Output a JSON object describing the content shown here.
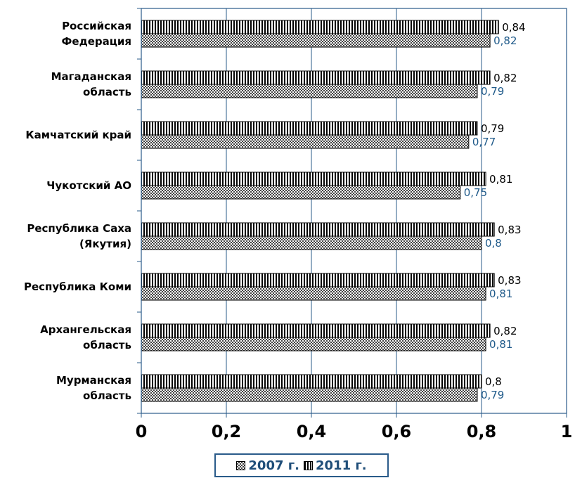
{
  "chart_data": {
    "type": "bar",
    "orientation": "horizontal",
    "categories": [
      [
        "Российская",
        "Федерация"
      ],
      [
        "Магаданская",
        "область"
      ],
      [
        "Камчатский край"
      ],
      [
        "Чукотский АО"
      ],
      [
        "Республика Саха",
        "(Якутия)"
      ],
      [
        "Республика Коми"
      ],
      [
        "Архангельская",
        "область"
      ],
      [
        "Мурманская",
        "область"
      ]
    ],
    "series": [
      {
        "name": "2011 г.",
        "values": [
          0.84,
          0.82,
          0.79,
          0.81,
          0.83,
          0.83,
          0.82,
          0.8
        ],
        "labels": [
          "0,84",
          "0,82",
          "0,79",
          "0,81",
          "0,83",
          "0,83",
          "0,82",
          "0,8"
        ]
      },
      {
        "name": "2007 г.",
        "values": [
          0.82,
          0.79,
          0.77,
          0.75,
          0.8,
          0.81,
          0.81,
          0.79
        ],
        "labels": [
          "0,82",
          "0,79",
          "0,77",
          "0,75",
          "0,8",
          "0,81",
          "0,81",
          "0,79"
        ]
      }
    ],
    "xlim": [
      0,
      1
    ],
    "x_ticks": [
      0,
      0.2,
      0.4,
      0.6,
      0.8,
      1
    ],
    "x_tick_labels": [
      "0",
      "0,2",
      "0,4",
      "0,6",
      "0,8",
      "1"
    ],
    "grid": "vertical",
    "legend_position": "bottom",
    "legend": [
      {
        "name": "2007 г.",
        "pattern": "checker"
      },
      {
        "name": "2011 г.",
        "pattern": "vertical-stripes"
      }
    ],
    "colors": {
      "axis": "#2a5b8a",
      "label_2007": "#1f5a8a",
      "label_2011": "#000000"
    }
  }
}
